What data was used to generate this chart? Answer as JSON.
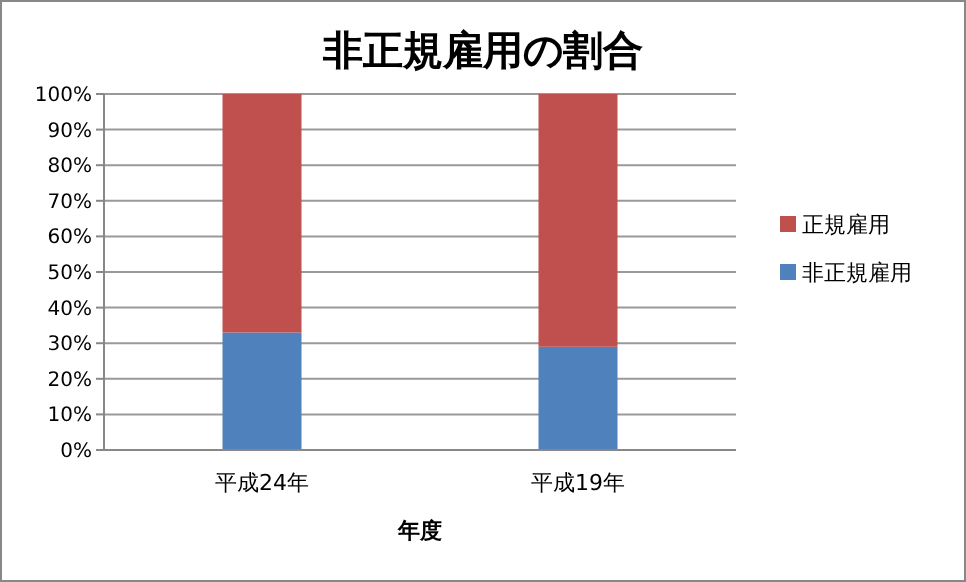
{
  "chart_data": {
    "type": "bar",
    "title": "非正規雇用の割合",
    "xlabel": "年度",
    "categories": [
      "平成24年",
      "平成19年"
    ],
    "stacked": true,
    "series": [
      {
        "name": "非正規雇用",
        "color": "#4f81bd",
        "values": [
          33,
          29
        ]
      },
      {
        "name": "正規雇用",
        "color": "#c0504d",
        "values": [
          67,
          71
        ]
      }
    ],
    "ylim": [
      0,
      100
    ],
    "yticks": [
      {
        "value": 0,
        "label": "0%"
      },
      {
        "value": 10,
        "label": "10%"
      },
      {
        "value": 20,
        "label": "20%"
      },
      {
        "value": 30,
        "label": "30%"
      },
      {
        "value": 40,
        "label": "40%"
      },
      {
        "value": 50,
        "label": "50%"
      },
      {
        "value": 60,
        "label": "60%"
      },
      {
        "value": 70,
        "label": "70%"
      },
      {
        "value": 80,
        "label": "80%"
      },
      {
        "value": 90,
        "label": "90%"
      },
      {
        "value": 100,
        "label": "100%"
      }
    ],
    "grid": "y",
    "legend": "right"
  }
}
